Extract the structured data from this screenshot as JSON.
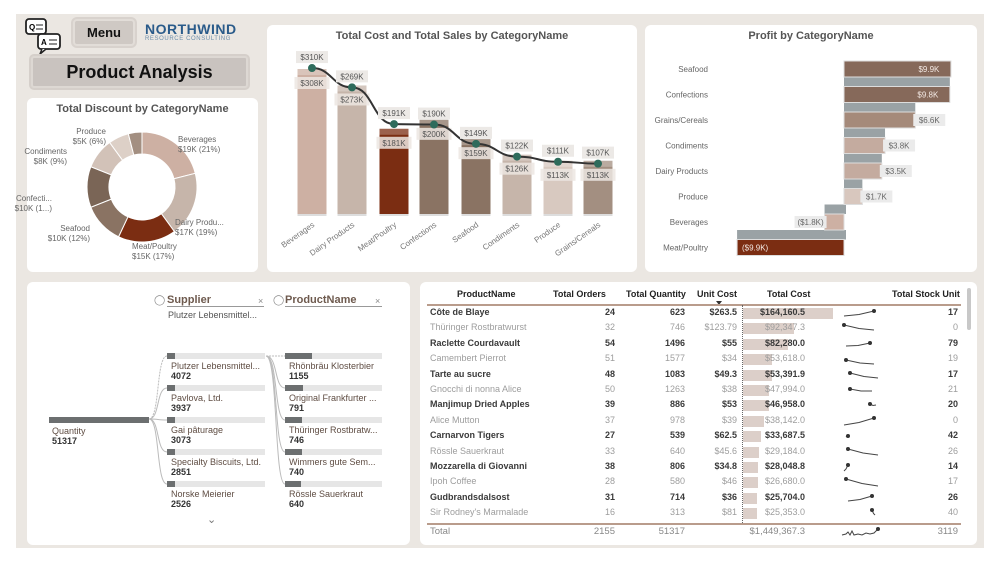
{
  "header": {
    "menu_label": "Menu",
    "logo_line1": "NORTHWIND",
    "logo_line2": "RESOURCE CONSULTING",
    "page_title": "Product Analysis",
    "qa_icon": "qa-chat-icon"
  },
  "colors": {
    "accent": "#7b2d12",
    "canvas": "#ebe7e2",
    "card": "#ffffff",
    "line": "#333333",
    "marker": "#2e6b5b"
  },
  "chart_data": [
    {
      "type": "pie",
      "title": "Total Discount by CategoryName",
      "slices": [
        {
          "label": "Beverages",
          "value_label": "$19K (21%)",
          "percent": 21,
          "color": "#cdb0a3"
        },
        {
          "label": "Dairy Produ...",
          "value_label": "$17K (19%)",
          "percent": 19,
          "color": "#c6b5aa"
        },
        {
          "label": "Meat/Poultry",
          "value_label": "$15K (17%)",
          "percent": 17,
          "color": "#7b2d12"
        },
        {
          "label": "Seafood",
          "value_label": "$10K (12%)",
          "percent": 12,
          "color": "#8a7363"
        },
        {
          "label": "Confecti...",
          "value_label": "$10K (1...)",
          "percent": 12,
          "color": "#7a6556"
        },
        {
          "label": "Condiments",
          "value_label": "$8K (9%)",
          "percent": 9,
          "color": "#d2c2b8"
        },
        {
          "label": "Produce",
          "value_label": "$5K (6%)",
          "percent": 6,
          "color": "#ddd0c7"
        },
        {
          "label": "",
          "value_label": "",
          "percent": 4,
          "color": "#a38f81"
        }
      ]
    },
    {
      "type": "bar",
      "title": "Total Cost and Total Sales by CategoryName",
      "categories": [
        "Beverages",
        "Dairy Products",
        "Meat/Poultry",
        "Confections",
        "Seafood",
        "Condiments",
        "Produce",
        "Grains/Cereals"
      ],
      "bar_values": [
        308,
        273,
        181,
        200,
        159,
        126,
        113,
        113
      ],
      "bar_labels": [
        "$308K",
        "$273K",
        "$181K",
        "$200K",
        "$159K",
        "$126K",
        "$113K",
        "$113K"
      ],
      "line_values": [
        310,
        269,
        191,
        190,
        149,
        122,
        111,
        107
      ],
      "line_labels": [
        "$310K",
        "$269K",
        "$191K",
        "$190K",
        "$149K",
        "$122K",
        "$111K",
        "$107K"
      ],
      "bar_colors": [
        "#cdb0a3",
        "#c6b5aa",
        "#7b2d12",
        "#8a7363",
        "#8a7363",
        "#c6b5aa",
        "#d8c9c0",
        "#a38f81"
      ],
      "unit": "K$",
      "ylim": [
        0,
        330
      ]
    },
    {
      "type": "bar",
      "orientation": "horizontal-waterfall",
      "title": "Profit by CategoryName",
      "categories": [
        "Seafood",
        "Confections",
        "Grains/Cereals",
        "Condiments",
        "Dairy Products",
        "Produce",
        "Beverages",
        "Meat/Poultry"
      ],
      "values": [
        9.9,
        9.8,
        6.6,
        3.8,
        3.5,
        1.7,
        -1.8,
        -9.9
      ],
      "labels": [
        "$9.9K",
        "$9.8K",
        "$6.6K",
        "$3.8K",
        "$3.5K",
        "$1.7K",
        "($1.8K)",
        "($9.9K)"
      ],
      "colors": [
        "#86695a",
        "#86695a",
        "#a58a7a",
        "#c4ab9f",
        "#c4ab9f",
        "#d8c7be",
        "#cdb0a3",
        "#7b2d12"
      ],
      "unit": "K$"
    }
  ],
  "decomp": {
    "root": {
      "label": "Quantity",
      "value": "51317"
    },
    "levels": [
      {
        "header": "Supplier",
        "selected": "Plutzer Lebensmittel..."
      },
      {
        "header": "ProductName",
        "selected": ""
      }
    ],
    "suppliers": [
      {
        "label": "Plutzer Lebensmittel...",
        "value": "4072",
        "share": 0.079
      },
      {
        "label": "Pavlova, Ltd.",
        "value": "3937",
        "share": 0.077
      },
      {
        "label": "Gai pâturage",
        "value": "3073",
        "share": 0.06
      },
      {
        "label": "Specialty Biscuits, Ltd.",
        "value": "2851",
        "share": 0.056
      },
      {
        "label": "Norske Meierier",
        "value": "2526",
        "share": 0.049
      }
    ],
    "products": [
      {
        "label": "Rhönbräu Klosterbier",
        "value": "1155",
        "share": 0.28
      },
      {
        "label": "Original Frankfurter ...",
        "value": "791",
        "share": 0.19
      },
      {
        "label": "Thüringer Rostbratw...",
        "value": "746",
        "share": 0.18
      },
      {
        "label": "Wimmers gute Sem...",
        "value": "740",
        "share": 0.18
      },
      {
        "label": "Rössle Sauerkraut",
        "value": "640",
        "share": 0.16
      }
    ]
  },
  "table": {
    "columns": [
      "ProductName",
      "Total Orders",
      "Total Quantity",
      "Unit Cost",
      "Total Cost",
      "Total Stock Unit"
    ],
    "sort_column": "Total Cost",
    "rows": [
      [
        "Côte de Blaye",
        "24",
        "623",
        "$263.5",
        "$164,160.5",
        "17",
        164160.5
      ],
      [
        "Thüringer Rostbratwurst",
        "32",
        "746",
        "$123.79",
        "$92,347.3",
        "0",
        92347.3
      ],
      [
        "Raclette Courdavault",
        "54",
        "1496",
        "$55",
        "$82,280.0",
        "79",
        82280
      ],
      [
        "Camembert Pierrot",
        "51",
        "1577",
        "$34",
        "$53,618.0",
        "19",
        53618
      ],
      [
        "Tarte au sucre",
        "48",
        "1083",
        "$49.3",
        "$53,391.9",
        "17",
        53391.9
      ],
      [
        "Gnocchi di nonna Alice",
        "50",
        "1263",
        "$38",
        "$47,994.0",
        "21",
        47994
      ],
      [
        "Manjimup Dried Apples",
        "39",
        "886",
        "$53",
        "$46,958.0",
        "20",
        46958
      ],
      [
        "Alice Mutton",
        "37",
        "978",
        "$39",
        "$38,142.0",
        "0",
        38142
      ],
      [
        "Carnarvon Tigers",
        "27",
        "539",
        "$62.5",
        "$33,687.5",
        "42",
        33687.5
      ],
      [
        "Rössle Sauerkraut",
        "33",
        "640",
        "$45.6",
        "$29,184.0",
        "26",
        29184
      ],
      [
        "Mozzarella di Giovanni",
        "38",
        "806",
        "$34.8",
        "$28,048.8",
        "14",
        28048.8
      ],
      [
        "Ipoh Coffee",
        "28",
        "580",
        "$46",
        "$26,680.0",
        "17",
        26680
      ],
      [
        "Gudbrandsdalsost",
        "31",
        "714",
        "$36",
        "$25,704.0",
        "26",
        25704
      ],
      [
        "Sir Rodney's Marmalade",
        "16",
        "313",
        "$81",
        "$25,353.0",
        "40",
        25353
      ]
    ],
    "total": {
      "label": "Total",
      "orders": "2155",
      "quantity": "51317",
      "cost": "$1,449,367.3",
      "stock": "3119"
    }
  }
}
